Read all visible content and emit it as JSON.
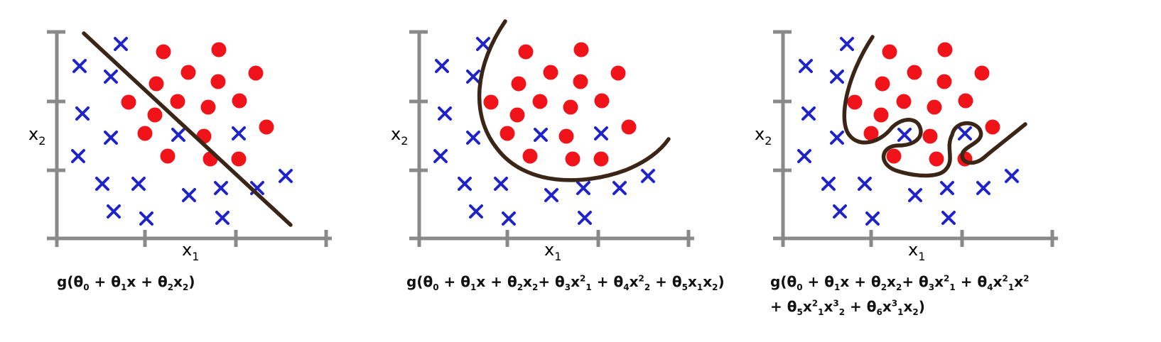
{
  "colors": {
    "axis": "#8a8a8a",
    "cross": "#1f24c8",
    "dot": "#f0141a",
    "boundary": "#3a2516"
  },
  "panels": [
    {
      "id": "linear",
      "xlabel": "x",
      "xlabel_sub": "1",
      "ylabel": "x",
      "ylabel_sub": "2",
      "formula_lines": [
        [
          [
            "t",
            "g(θ"
          ],
          [
            "sub",
            "0"
          ],
          [
            "t",
            " + θ"
          ],
          [
            "sub",
            "1"
          ],
          [
            "t",
            "x  + θ"
          ],
          [
            "sub",
            "2"
          ],
          [
            "t",
            "x"
          ],
          [
            "sub",
            "2"
          ],
          [
            "t",
            ")"
          ]
        ]
      ]
    },
    {
      "id": "quadratic",
      "xlabel": "x",
      "xlabel_sub": "1",
      "ylabel": "x",
      "ylabel_sub": "2",
      "formula_lines": [
        [
          [
            "t",
            "g(θ"
          ],
          [
            "sub",
            "0"
          ],
          [
            "t",
            " + θ"
          ],
          [
            "sub",
            "1"
          ],
          [
            "t",
            "x  + θ"
          ],
          [
            "sub",
            "2"
          ],
          [
            "t",
            "x"
          ],
          [
            "sub",
            "2"
          ],
          [
            "t",
            "+ θ"
          ],
          [
            "sub",
            "3"
          ],
          [
            "t",
            "x"
          ],
          [
            "sup",
            "2"
          ],
          [
            "sub",
            "1"
          ],
          [
            "t",
            " + θ"
          ],
          [
            "sub",
            "4"
          ],
          [
            "t",
            "x"
          ],
          [
            "sup",
            "2"
          ],
          [
            "sub",
            "2"
          ],
          [
            "t",
            " + θ"
          ],
          [
            "sub",
            "5"
          ],
          [
            "t",
            "x"
          ],
          [
            "sub",
            "1"
          ],
          [
            "t",
            "x"
          ],
          [
            "sub",
            "2"
          ],
          [
            "t",
            ")"
          ]
        ]
      ]
    },
    {
      "id": "high-order",
      "xlabel": "x",
      "xlabel_sub": "1",
      "ylabel": "x",
      "ylabel_sub": "2",
      "formula_lines": [
        [
          [
            "t",
            "g(θ"
          ],
          [
            "sub",
            "0"
          ],
          [
            "t",
            " + θ"
          ],
          [
            "sub",
            "1"
          ],
          [
            "t",
            "x  + θ"
          ],
          [
            "sub",
            "2"
          ],
          [
            "t",
            "x"
          ],
          [
            "sub",
            "2"
          ],
          [
            "t",
            "+ θ"
          ],
          [
            "sub",
            "3"
          ],
          [
            "t",
            "x"
          ],
          [
            "sup",
            "2"
          ],
          [
            "sub",
            "1"
          ],
          [
            "t",
            " + θ"
          ],
          [
            "sub",
            "4"
          ],
          [
            "t",
            "x"
          ],
          [
            "sup",
            "2"
          ],
          [
            "sub",
            "1"
          ],
          [
            "t",
            "x"
          ],
          [
            "sup",
            "2"
          ]
        ],
        [
          [
            "t",
            "+ θ"
          ],
          [
            "sub",
            "5"
          ],
          [
            "t",
            "x"
          ],
          [
            "sup",
            "2"
          ],
          [
            "sub",
            "1"
          ],
          [
            "t",
            "x"
          ],
          [
            "sup",
            "3"
          ],
          [
            "sub",
            "2"
          ],
          [
            "t",
            " + θ"
          ],
          [
            "sub",
            "6"
          ],
          [
            "t",
            "x"
          ],
          [
            "sup",
            "3"
          ],
          [
            "sub",
            "1"
          ],
          [
            "t",
            "x"
          ],
          [
            "sub",
            "2"
          ],
          [
            "t",
            ")"
          ]
        ]
      ]
    }
  ]
}
